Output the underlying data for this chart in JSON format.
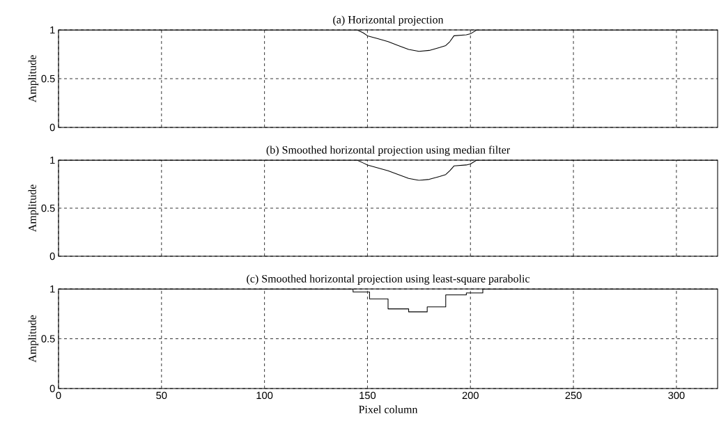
{
  "chart_data": [
    {
      "type": "line",
      "title": "(a) Horizontal projection",
      "ylabel": "Amplitude",
      "color": "#000000",
      "grid": true,
      "tick_labels": "y",
      "xlim": [
        0,
        320
      ],
      "ylim": [
        0,
        1
      ],
      "xticks": [
        0,
        50,
        100,
        150,
        200,
        250,
        300
      ],
      "yticks": [
        0,
        0.5,
        1
      ],
      "x": [
        0,
        145,
        148,
        150,
        155,
        160,
        165,
        170,
        175,
        180,
        185,
        188,
        190,
        192,
        198,
        200,
        203,
        320
      ],
      "values": [
        1,
        1,
        0.97,
        0.94,
        0.91,
        0.88,
        0.84,
        0.8,
        0.78,
        0.79,
        0.82,
        0.84,
        0.88,
        0.94,
        0.95,
        0.96,
        1,
        1
      ]
    },
    {
      "type": "line",
      "title": "(b) Smoothed horizontal projection using median filter",
      "ylabel": "Amplitude",
      "color": "#000000",
      "grid": true,
      "tick_labels": "y",
      "xlim": [
        0,
        320
      ],
      "ylim": [
        0,
        1
      ],
      "xticks": [
        0,
        50,
        100,
        150,
        200,
        250,
        300
      ],
      "yticks": [
        0,
        0.5,
        1
      ],
      "x": [
        0,
        145,
        148,
        150,
        155,
        160,
        165,
        170,
        175,
        180,
        185,
        188,
        190,
        192,
        198,
        200,
        203,
        320
      ],
      "values": [
        1,
        1,
        0.97,
        0.95,
        0.92,
        0.89,
        0.85,
        0.81,
        0.79,
        0.8,
        0.83,
        0.85,
        0.89,
        0.94,
        0.95,
        0.96,
        1,
        1
      ]
    },
    {
      "type": "step",
      "title": "(c) Smoothed horizontal projection using least-square parabolic",
      "xlabel": "Pixel column",
      "ylabel": "Amplitude",
      "color": "#000000",
      "grid": true,
      "xlim": [
        0,
        320
      ],
      "ylim": [
        0,
        1
      ],
      "xticks": [
        0,
        50,
        100,
        150,
        200,
        250,
        300
      ],
      "yticks": [
        0,
        0.5,
        1
      ],
      "x": [
        0,
        143,
        151,
        160,
        170,
        179,
        188,
        198,
        206,
        320
      ],
      "values": [
        1,
        0.97,
        0.9,
        0.8,
        0.77,
        0.82,
        0.94,
        0.96,
        1,
        1
      ]
    }
  ]
}
